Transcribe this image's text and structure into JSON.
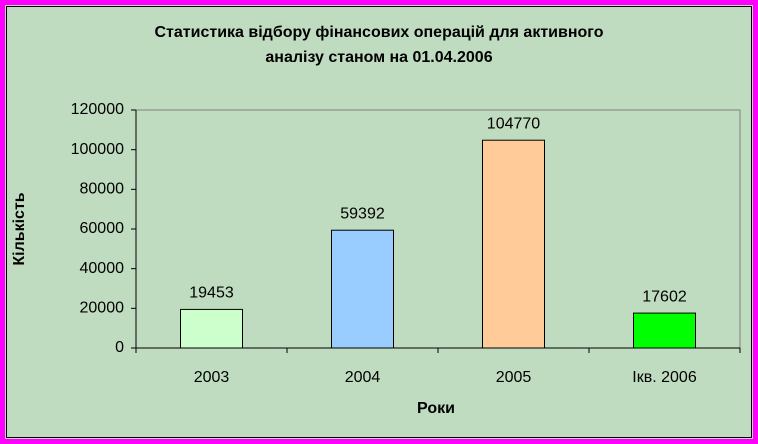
{
  "chart_data": {
    "type": "bar",
    "title": [
      "Статистика відбору фінансових операцій для активного",
      "аналізу станом на 01.04.2006"
    ],
    "y_label": "Кількість",
    "x_label": "Роки",
    "categories": [
      "2003",
      "2004",
      "2005",
      "Iкв. 2006"
    ],
    "values": [
      19453,
      59392,
      104770,
      17602
    ],
    "colors": [
      "#ccffcc",
      "#99ccff",
      "#ffcc99",
      "#00ff00"
    ],
    "ylim": [
      0,
      120000
    ],
    "yticks": [
      0,
      20000,
      40000,
      60000,
      80000,
      100000,
      120000
    ],
    "grid": false
  }
}
